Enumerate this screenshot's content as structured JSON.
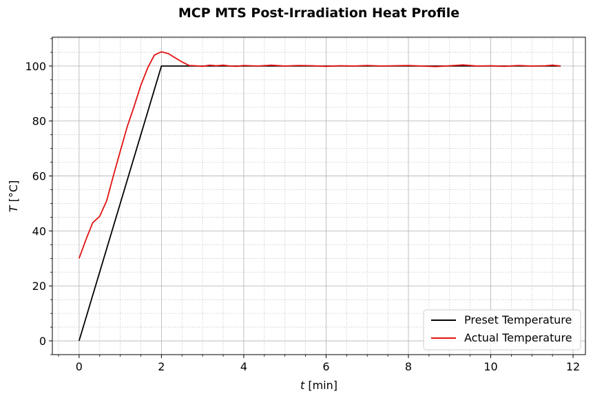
{
  "chart_data": {
    "type": "line",
    "title": "MCP MTS Post-Irradiation Heat Profile",
    "xlabel_italic": "t",
    "xlabel_unit": " [min]",
    "ylabel_italic": "T",
    "ylabel_unit": " [°C]",
    "xlim": [
      -0.65,
      12.3
    ],
    "ylim": [
      -5,
      110.5
    ],
    "x_major_ticks": [
      0,
      2,
      4,
      6,
      8,
      10,
      12
    ],
    "x_tick_labels": [
      "0",
      "2",
      "4",
      "6",
      "8",
      "10",
      "12"
    ],
    "x_minor_step": 0.5,
    "y_major_ticks": [
      0,
      20,
      40,
      60,
      80,
      100
    ],
    "y_tick_labels": [
      "0",
      "20",
      "40",
      "60",
      "80",
      "100"
    ],
    "y_minor_step": 5,
    "grid": true,
    "legend_position": "bottom-right",
    "series": [
      {
        "name": "Preset Temperature",
        "color": "#000000",
        "x": [
          0,
          2,
          11.7
        ],
        "y": [
          0,
          100,
          100
        ]
      },
      {
        "name": "Actual Temperature",
        "color": "#e0110f",
        "x": [
          0,
          0.17,
          0.33,
          0.5,
          0.67,
          0.83,
          1.0,
          1.17,
          1.33,
          1.5,
          1.67,
          1.83,
          2.0,
          2.17,
          2.33,
          2.5,
          2.67,
          2.83,
          3.0,
          3.17,
          3.33,
          3.5,
          3.67,
          3.83,
          4.0,
          4.33,
          4.67,
          5.0,
          5.33,
          5.67,
          6.0,
          6.33,
          6.67,
          7.0,
          7.33,
          7.67,
          8.0,
          8.33,
          8.67,
          9.0,
          9.33,
          9.67,
          10.0,
          10.33,
          10.67,
          11.0,
          11.33,
          11.5,
          11.7
        ],
        "y": [
          30,
          37,
          43,
          45.3,
          51,
          60,
          69,
          78,
          85,
          93,
          99.5,
          104,
          105.2,
          104.5,
          103,
          101.5,
          100.2,
          100.1,
          99.9,
          100.3,
          100.1,
          100.3,
          100,
          99.9,
          100.2,
          100,
          100.3,
          100,
          100.2,
          100.1,
          99.9,
          100.1,
          100,
          100.2,
          100,
          100.1,
          100.2,
          100,
          99.8,
          100.1,
          100.4,
          100,
          100.1,
          99.9,
          100.2,
          100,
          100.1,
          100.3,
          100
        ]
      }
    ]
  }
}
